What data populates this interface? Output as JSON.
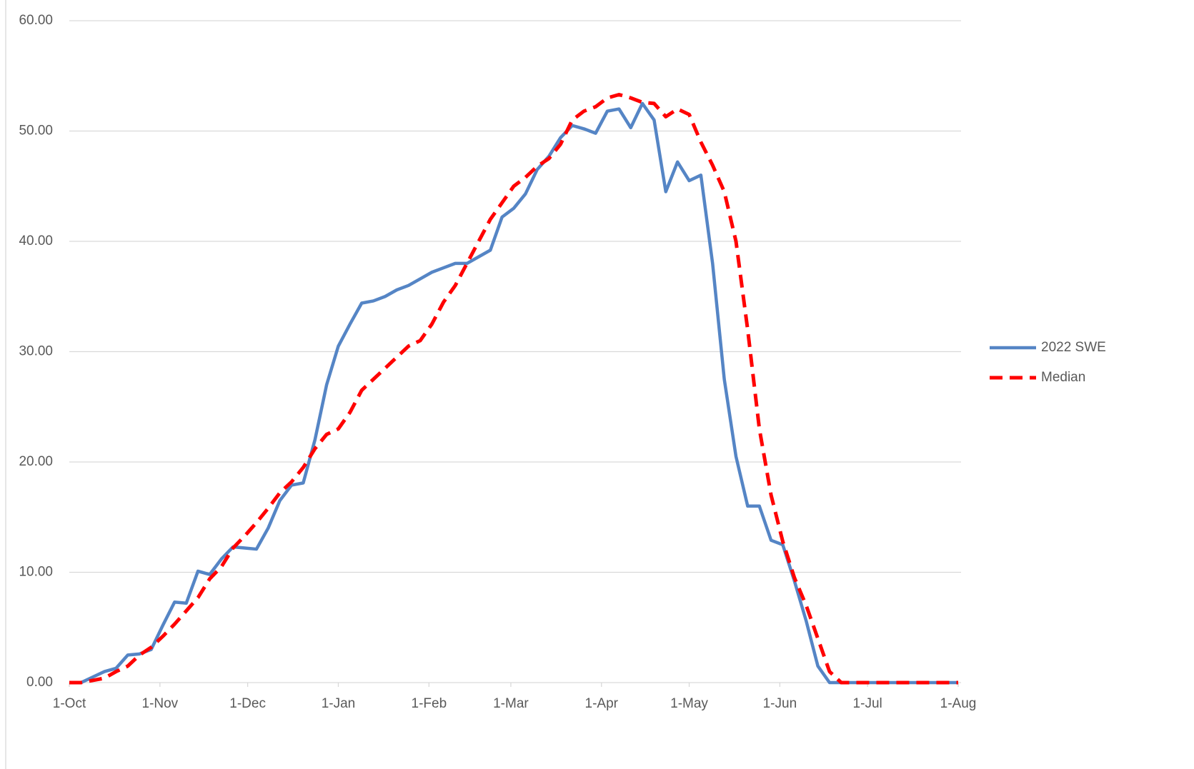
{
  "chart_data": {
    "type": "line",
    "x": [
      0,
      4,
      8,
      12,
      16,
      20,
      24,
      28,
      32,
      36,
      40,
      44,
      48,
      52,
      56,
      60,
      64,
      68,
      72,
      76,
      80,
      84,
      88,
      92,
      96,
      100,
      104,
      108,
      112,
      116,
      120,
      124,
      128,
      132,
      136,
      140,
      144,
      148,
      152,
      156,
      160,
      164,
      168,
      172,
      176,
      180,
      184,
      188,
      192,
      196,
      200,
      204,
      208,
      212,
      216,
      220,
      224,
      228,
      232,
      236,
      240,
      244,
      248,
      252,
      256,
      260,
      264,
      268,
      272,
      276,
      280,
      284,
      288,
      292,
      296,
      300,
      304
    ],
    "series": [
      {
        "name": "2022 SWE",
        "color": "#5585c5",
        "dashed": false,
        "values": [
          0,
          0,
          0.5,
          1.0,
          1.3,
          2.5,
          2.6,
          3.0,
          5.2,
          7.3,
          7.2,
          10.1,
          9.8,
          11.2,
          12.3,
          12.2,
          12.1,
          14.0,
          16.5,
          17.9,
          18.1,
          22.0,
          27.0,
          30.5,
          32.5,
          34.4,
          34.6,
          35.0,
          35.6,
          36.0,
          36.6,
          37.2,
          37.6,
          38.0,
          38.0,
          38.6,
          39.2,
          42.2,
          43.0,
          44.3,
          46.5,
          47.7,
          49.4,
          50.5,
          50.2,
          49.8,
          51.8,
          52.0,
          50.3,
          52.5,
          51.0,
          44.5,
          47.2,
          45.5,
          46.0,
          38.0,
          27.5,
          20.5,
          16.0,
          16.0,
          12.9,
          12.5,
          9.2,
          5.6,
          1.5,
          0,
          0,
          0,
          0,
          0,
          0,
          0,
          0,
          0,
          0,
          0,
          0
        ]
      },
      {
        "name": "Median",
        "color": "#ff0000",
        "dashed": true,
        "values": [
          0,
          0,
          0.2,
          0.4,
          1.0,
          1.5,
          2.5,
          3.2,
          4.2,
          5.3,
          6.5,
          7.7,
          9.4,
          10.5,
          12.2,
          13.3,
          14.5,
          15.8,
          17.2,
          18.2,
          19.5,
          21.2,
          22.5,
          23.0,
          24.5,
          26.5,
          27.5,
          28.5,
          29.5,
          30.5,
          31.0,
          32.5,
          34.5,
          36.0,
          38.0,
          40.0,
          42.0,
          43.5,
          45.0,
          45.8,
          46.8,
          47.5,
          48.8,
          51.0,
          51.8,
          52.2,
          53.0,
          53.3,
          53.0,
          52.6,
          52.5,
          51.3,
          52.0,
          51.5,
          49.0,
          46.9,
          44.5,
          40.0,
          32.0,
          23.0,
          17.0,
          12.8,
          9.5,
          7.0,
          4.0,
          1.0,
          0,
          0,
          0,
          0,
          0,
          0,
          0,
          0,
          0,
          0,
          0
        ]
      }
    ],
    "xlim": [
      0,
      304
    ],
    "xticks": [
      {
        "value": 0,
        "label": "1-Oct"
      },
      {
        "value": 31,
        "label": "1-Nov"
      },
      {
        "value": 61,
        "label": "1-Dec"
      },
      {
        "value": 92,
        "label": "1-Jan"
      },
      {
        "value": 123,
        "label": "1-Feb"
      },
      {
        "value": 151,
        "label": "1-Mar"
      },
      {
        "value": 182,
        "label": "1-Apr"
      },
      {
        "value": 212,
        "label": "1-May"
      },
      {
        "value": 243,
        "label": "1-Jun"
      },
      {
        "value": 273,
        "label": "1-Jul"
      },
      {
        "value": 304,
        "label": "1-Aug"
      }
    ],
    "ylim": [
      0,
      60
    ],
    "yticks": [
      {
        "value": 0,
        "label": "0.00"
      },
      {
        "value": 10,
        "label": "10.00"
      },
      {
        "value": 20,
        "label": "20.00"
      },
      {
        "value": 30,
        "label": "30.00"
      },
      {
        "value": 40,
        "label": "40.00"
      },
      {
        "value": 50,
        "label": "50.00"
      },
      {
        "value": 60,
        "label": "60.00"
      }
    ],
    "grid": true,
    "legend": "right"
  }
}
